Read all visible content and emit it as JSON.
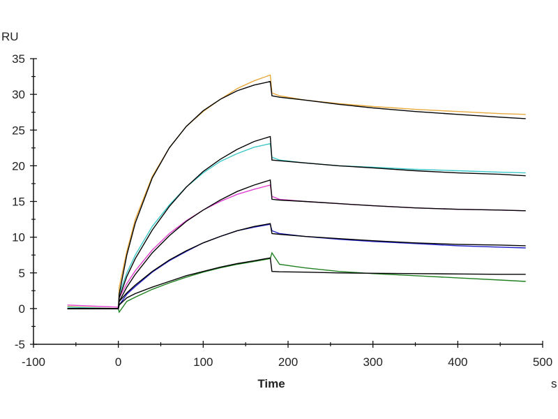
{
  "chart_data": {
    "type": "line",
    "title": "",
    "ylabel": "RU",
    "xlabel": "Time",
    "xunit": "s",
    "xlim": [
      -100,
      500
    ],
    "ylim": [
      -5,
      35
    ],
    "xticks": [
      -100,
      0,
      100,
      200,
      300,
      400,
      500
    ],
    "yticks": [
      -5,
      0,
      5,
      10,
      15,
      20,
      25,
      30,
      35
    ],
    "grid": false,
    "x": [
      -60,
      -1,
      0,
      1,
      10,
      20,
      40,
      60,
      80,
      100,
      120,
      140,
      160,
      179,
      181,
      190,
      220,
      260,
      300,
      350,
      400,
      450,
      480
    ],
    "series": [
      {
        "name": "curve-1",
        "color": "#e8a93c",
        "values": [
          0.3,
          0,
          0,
          3,
          8,
          12.5,
          18.5,
          22.5,
          25.5,
          27.6,
          29.3,
          30.8,
          31.9,
          32.7,
          30.2,
          29.8,
          29.2,
          28.7,
          28.3,
          27.9,
          27.6,
          27.3,
          27.2
        ]
      },
      {
        "name": "fit-1",
        "color": "#000000",
        "values": [
          0,
          0,
          0,
          2,
          7.5,
          12,
          18.3,
          22.5,
          25.5,
          27.7,
          29.3,
          30.5,
          31.3,
          31.8,
          29.8,
          29.6,
          29.2,
          28.6,
          28.1,
          27.6,
          27.2,
          26.8,
          26.6
        ]
      },
      {
        "name": "curve-2",
        "color": "#3cc8c8",
        "values": [
          0.2,
          0,
          0,
          2,
          5,
          7.5,
          11.5,
          14.5,
          17,
          19,
          20.6,
          21.7,
          22.6,
          23.1,
          21.2,
          20.8,
          20.4,
          20,
          19.8,
          19.5,
          19.3,
          19.1,
          19
        ]
      },
      {
        "name": "fit-2",
        "color": "#000000",
        "values": [
          0,
          0,
          0,
          1.5,
          4.5,
          7,
          11,
          14.3,
          17,
          19.2,
          20.9,
          22.3,
          23.4,
          24.1,
          20.8,
          20.7,
          20.4,
          20,
          19.7,
          19.3,
          19,
          18.8,
          18.6
        ]
      },
      {
        "name": "curve-3",
        "color": "#e040d0",
        "values": [
          0.5,
          0.2,
          0,
          1.5,
          3.5,
          5.3,
          8.2,
          10.5,
          12.3,
          13.8,
          15,
          16,
          16.7,
          17.3,
          15.7,
          15.3,
          15,
          14.7,
          14.4,
          14.1,
          13.9,
          13.8,
          13.7
        ]
      },
      {
        "name": "fit-3",
        "color": "#000000",
        "values": [
          0,
          0,
          0,
          1,
          3,
          4.8,
          7.8,
          10.2,
          12.2,
          13.8,
          15.2,
          16.4,
          17.3,
          18,
          15.3,
          15.2,
          15,
          14.7,
          14.4,
          14.1,
          13.9,
          13.8,
          13.7
        ]
      },
      {
        "name": "curve-4",
        "color": "#2020c8",
        "values": [
          0,
          0,
          0,
          0.5,
          2,
          3.1,
          5.1,
          6.7,
          8,
          9.2,
          10.1,
          10.9,
          11.4,
          11.8,
          10.9,
          10.5,
          10.1,
          9.7,
          9.4,
          9.1,
          8.8,
          8.6,
          8.5
        ]
      },
      {
        "name": "fit-4",
        "color": "#000000",
        "values": [
          0,
          0,
          0,
          1,
          2.2,
          3.3,
          5.2,
          6.8,
          8.1,
          9.2,
          10.1,
          10.9,
          11.5,
          11.9,
          10.5,
          10.4,
          10.1,
          9.8,
          9.5,
          9.2,
          9,
          8.9,
          8.8
        ]
      },
      {
        "name": "curve-5",
        "color": "#208020",
        "values": [
          0,
          0,
          0,
          -0.5,
          1,
          1.6,
          2.7,
          3.6,
          4.4,
          5.1,
          5.7,
          6.2,
          6.6,
          7,
          7.8,
          6.2,
          5.7,
          5.2,
          4.9,
          4.6,
          4.3,
          4,
          3.8
        ]
      },
      {
        "name": "fit-5",
        "color": "#000000",
        "values": [
          0,
          0,
          0,
          0.5,
          1.5,
          2.1,
          3,
          3.8,
          4.6,
          5.2,
          5.8,
          6.3,
          6.7,
          7.1,
          5.2,
          5.15,
          5.1,
          5,
          4.95,
          4.9,
          4.85,
          4.8,
          4.8
        ]
      }
    ]
  }
}
